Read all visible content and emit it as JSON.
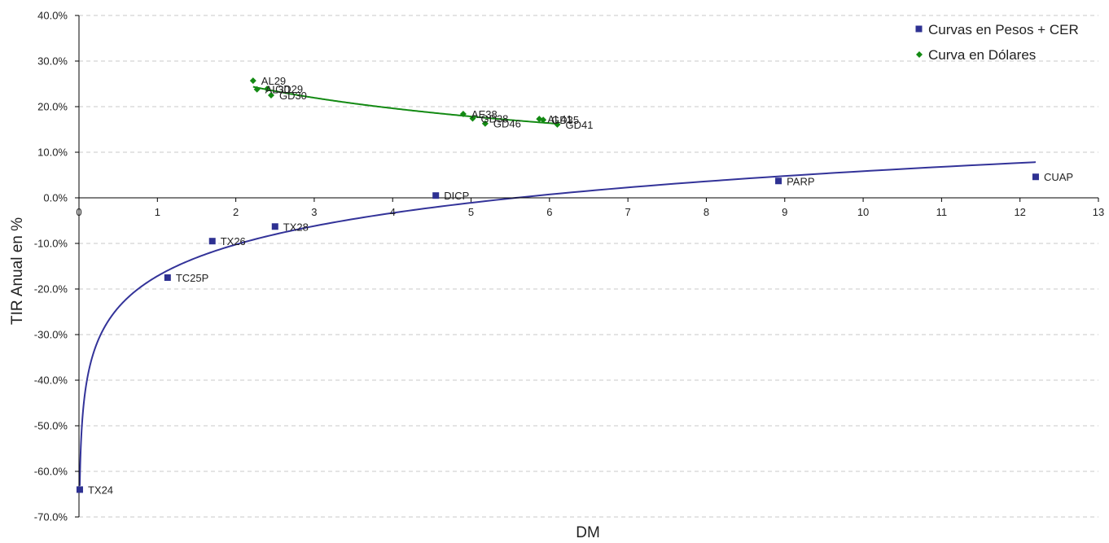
{
  "chart_data": {
    "type": "scatter",
    "xlabel": "DM",
    "ylabel": "TIR Anual en %",
    "xlim": [
      0,
      13
    ],
    "ylim": [
      -70,
      40
    ],
    "x_ticks": [
      0,
      1,
      2,
      3,
      4,
      5,
      6,
      7,
      8,
      9,
      10,
      11,
      12,
      13
    ],
    "y_ticks": [
      40,
      30,
      20,
      10,
      0,
      -10,
      -20,
      -30,
      -40,
      -50,
      -60,
      -70
    ],
    "y_tick_format": "percent_1dec",
    "grid": "horizontal-dashed",
    "legend_position": "top-right",
    "series": [
      {
        "name": "Curvas en Pesos + CER",
        "marker": "square",
        "color": "#2e3192",
        "trendline": "logarithmic",
        "points": [
          {
            "label": "TX24",
            "x": 0.01,
            "y": -64.0
          },
          {
            "label": "TC25P",
            "x": 1.13,
            "y": -17.5
          },
          {
            "label": "TX26",
            "x": 1.7,
            "y": -9.5
          },
          {
            "label": "TX28",
            "x": 2.5,
            "y": -6.3
          },
          {
            "label": "DICP",
            "x": 4.55,
            "y": 0.5
          },
          {
            "label": "PARP",
            "x": 8.92,
            "y": 3.7
          },
          {
            "label": "CUAP",
            "x": 12.2,
            "y": 4.6
          }
        ]
      },
      {
        "name": "Curva en Dólares",
        "marker": "diamond",
        "color": "#138a13",
        "trendline": "logarithmic",
        "points": [
          {
            "label": "AL29",
            "x": 2.22,
            "y": 25.7
          },
          {
            "label": "AL30",
            "x": 2.27,
            "y": 23.8
          },
          {
            "label": "GD29",
            "x": 2.4,
            "y": 23.9
          },
          {
            "label": "GD30",
            "x": 2.45,
            "y": 22.5
          },
          {
            "label": "AE38",
            "x": 4.9,
            "y": 18.4
          },
          {
            "label": "GD38",
            "x": 5.02,
            "y": 17.4
          },
          {
            "label": "GD46",
            "x": 5.18,
            "y": 16.3
          },
          {
            "label": "AL41",
            "x": 5.87,
            "y": 17.3
          },
          {
            "label": "GD35",
            "x": 5.92,
            "y": 17.1
          },
          {
            "label": "GD41",
            "x": 6.1,
            "y": 16.1
          }
        ]
      }
    ]
  }
}
